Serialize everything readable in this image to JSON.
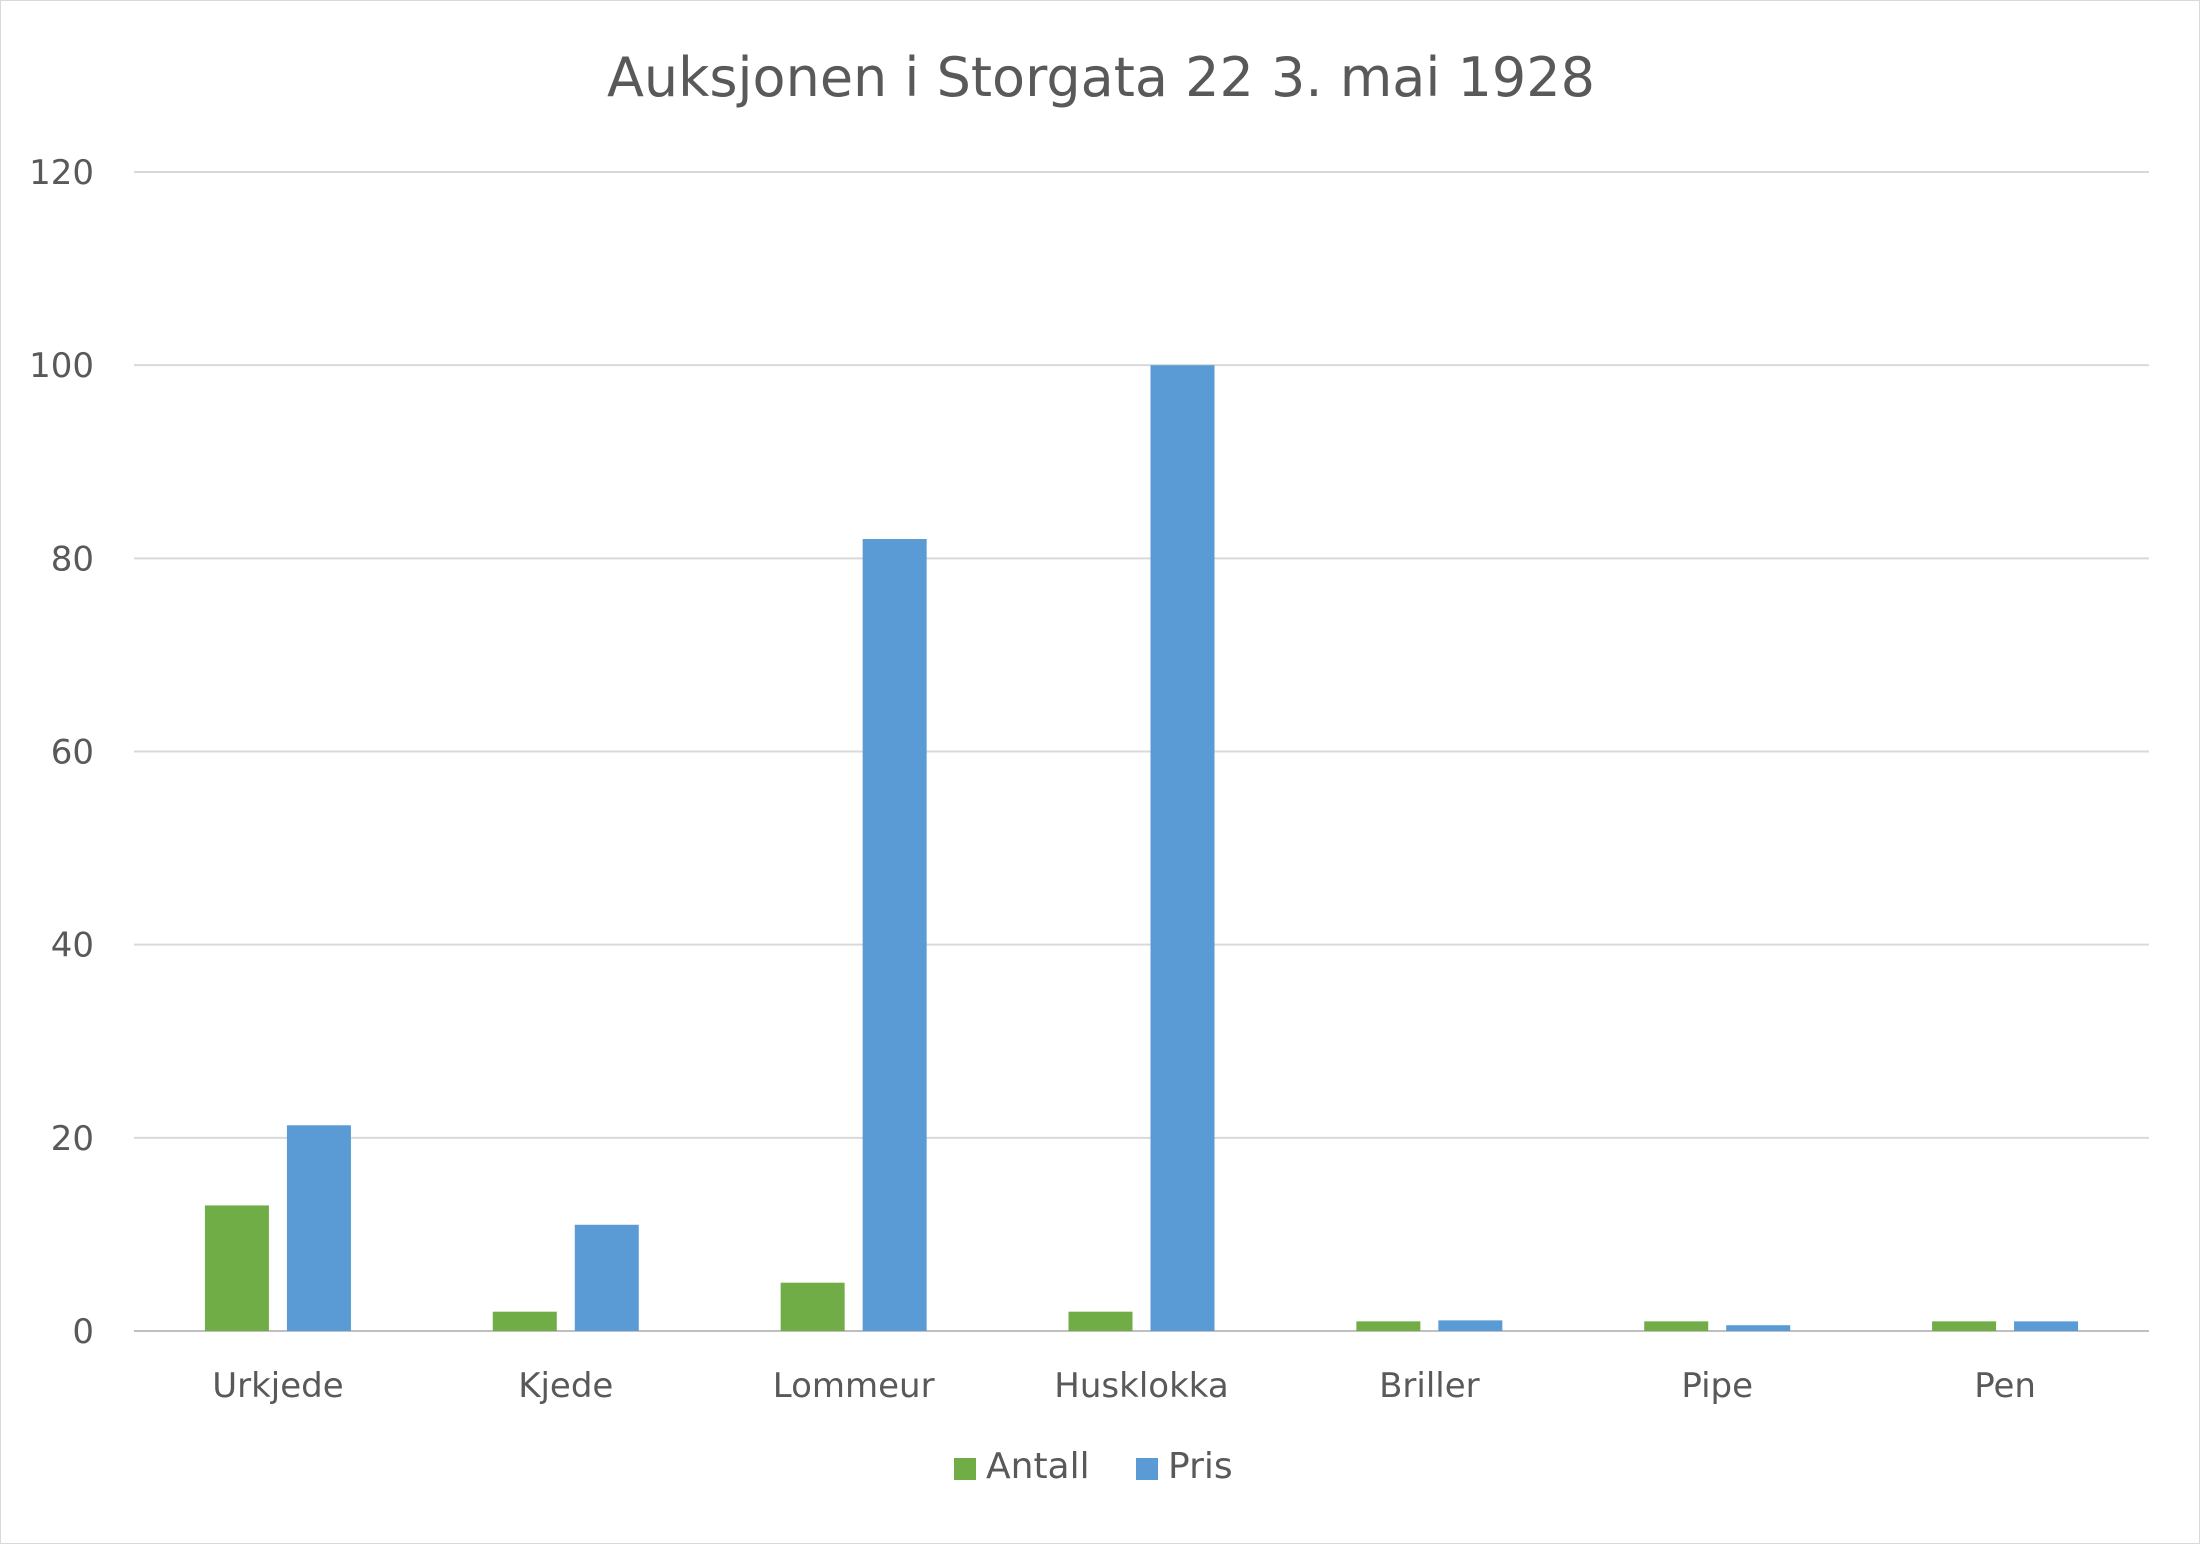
{
  "chart_data": {
    "type": "bar",
    "title": "Auksjonen i Storgata 22 3. mai 1928",
    "xlabel": "",
    "ylabel": "",
    "ylim": [
      0,
      120
    ],
    "yticks": [
      0,
      20,
      40,
      60,
      80,
      100,
      120
    ],
    "grid": true,
    "legend_position": "bottom",
    "categories": [
      "Urkjede",
      "Kjede",
      "Lommeur",
      "Husklokka",
      "Briller",
      "Pipe",
      "Pen"
    ],
    "series": [
      {
        "name": "Antall",
        "color": "#70ad47",
        "values": [
          13,
          2,
          5,
          2,
          1,
          1,
          1
        ]
      },
      {
        "name": "Pris",
        "color": "#5b9bd5",
        "values": [
          21.3,
          11,
          82,
          100,
          1.1,
          0.6,
          1
        ]
      }
    ]
  }
}
